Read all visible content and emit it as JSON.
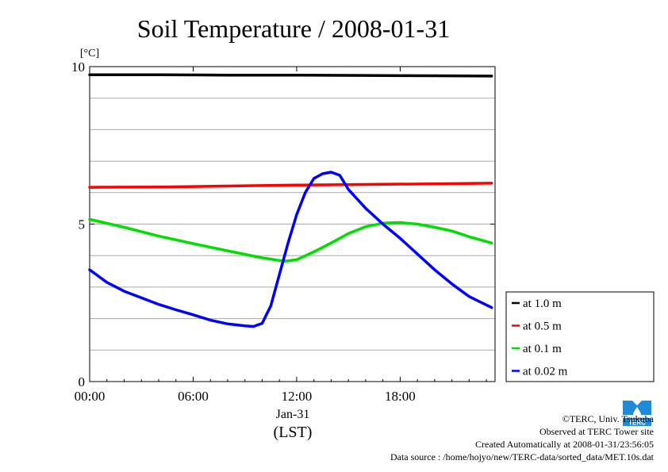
{
  "chart_data": {
    "type": "line",
    "title": "Soil Temperature / 2008-01-31",
    "ylabel": "[°C]",
    "xlabel_date": "Jan-31",
    "xlabel_unit": "(LST)",
    "xlim_hours": [
      0,
      23.5
    ],
    "ylim": [
      0,
      10
    ],
    "y_ticks": [
      "0",
      "5",
      "10"
    ],
    "x_ticks": [
      {
        "hour": 0,
        "label": "00:00"
      },
      {
        "hour": 6,
        "label": "06:00"
      },
      {
        "hour": 12,
        "label": "12:00"
      },
      {
        "hour": 18,
        "label": "18:00"
      }
    ],
    "grid": true,
    "legend_position": "right",
    "series": [
      {
        "name": "at 1.0 m",
        "color": "#000000",
        "points": [
          [
            0,
            9.74
          ],
          [
            4,
            9.74
          ],
          [
            8,
            9.73
          ],
          [
            12,
            9.73
          ],
          [
            16,
            9.72
          ],
          [
            20,
            9.71
          ],
          [
            23.3,
            9.7
          ]
        ]
      },
      {
        "name": "at 0.5 m",
        "color": "#ff0000",
        "points": [
          [
            0,
            6.17
          ],
          [
            4,
            6.18
          ],
          [
            8,
            6.21
          ],
          [
            12,
            6.24
          ],
          [
            16,
            6.26
          ],
          [
            20,
            6.28
          ],
          [
            23.3,
            6.3
          ]
        ]
      },
      {
        "name": "at 0.1 m",
        "color": "#00dd00",
        "points": [
          [
            0,
            5.15
          ],
          [
            2,
            4.9
          ],
          [
            4,
            4.62
          ],
          [
            6,
            4.38
          ],
          [
            8,
            4.15
          ],
          [
            10,
            3.93
          ],
          [
            11.3,
            3.82
          ],
          [
            12,
            3.87
          ],
          [
            13,
            4.12
          ],
          [
            14,
            4.4
          ],
          [
            15,
            4.7
          ],
          [
            16,
            4.92
          ],
          [
            17,
            5.03
          ],
          [
            18,
            5.05
          ],
          [
            19,
            5.0
          ],
          [
            20,
            4.9
          ],
          [
            21,
            4.78
          ],
          [
            22,
            4.6
          ],
          [
            23.3,
            4.4
          ]
        ]
      },
      {
        "name": "at 0.02 m",
        "color": "#0000ff",
        "points": [
          [
            0,
            3.55
          ],
          [
            1,
            3.15
          ],
          [
            2,
            2.87
          ],
          [
            3,
            2.66
          ],
          [
            4,
            2.45
          ],
          [
            5,
            2.28
          ],
          [
            6,
            2.12
          ],
          [
            7,
            1.95
          ],
          [
            8,
            1.83
          ],
          [
            9,
            1.77
          ],
          [
            9.5,
            1.75
          ],
          [
            10,
            1.85
          ],
          [
            10.5,
            2.4
          ],
          [
            11,
            3.4
          ],
          [
            11.5,
            4.4
          ],
          [
            12,
            5.3
          ],
          [
            12.5,
            6.0
          ],
          [
            13,
            6.45
          ],
          [
            13.5,
            6.6
          ],
          [
            14,
            6.65
          ],
          [
            14.5,
            6.55
          ],
          [
            15,
            6.1
          ],
          [
            16,
            5.5
          ],
          [
            17,
            5.0
          ],
          [
            18,
            4.55
          ],
          [
            19,
            4.05
          ],
          [
            20,
            3.55
          ],
          [
            21,
            3.1
          ],
          [
            22,
            2.7
          ],
          [
            23.3,
            2.35
          ]
        ]
      }
    ]
  },
  "credits": {
    "copyright": "©TERC, Univ. Tsukuba",
    "site": "Observed at TERC Tower site",
    "created": "Created Automatically at 2008-01-31/23:56:05",
    "source": "Data source : /home/hojyo/new/TERC-data/sorted_data/MET.10s.dat"
  },
  "logo": {
    "icon": "terc-logo-icon",
    "text": "TERC",
    "color": "#1f8ad8"
  }
}
